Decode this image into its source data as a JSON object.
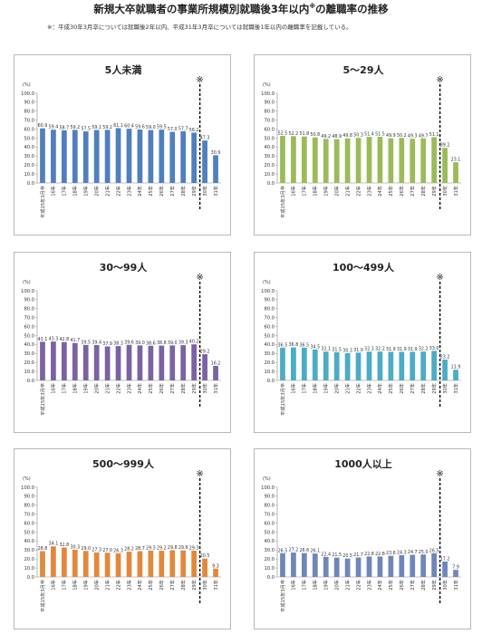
{
  "page": {
    "title": "新規大卒就職者の事業所規模別就職後3年以内",
    "title_mark": "※",
    "title_suffix": "の離職率の推移",
    "note": "※：平成30年3月卒については就職後2年以内、平成31年3月卒については就職後1年以内の離職率を記載している。"
  },
  "chart_data": [
    {
      "type": "bar",
      "title": "5人未満",
      "color": "#4f7fbf",
      "unit": "(%)",
      "marker": "※",
      "ylim": [
        0,
        100
      ],
      "yticks": [
        "0.0",
        "10.0",
        "20.0",
        "30.0",
        "40.0",
        "50.0",
        "60.0",
        "70.0",
        "80.0",
        "90.0",
        "100.0"
      ],
      "categories": [
        "平成15年3月卒",
        "16年",
        "17年",
        "18年",
        "19年",
        "20年",
        "21年",
        "22年",
        "23年",
        "24年",
        "25年",
        "26年",
        "27年",
        "28年",
        "29年",
        "30年",
        "31年"
      ],
      "values": [
        60.9,
        59.4,
        58.7,
        59.2,
        57.5,
        59.1,
        59.2,
        61.1,
        60.4,
        59.6,
        59.0,
        59.5,
        57.0,
        57.7,
        56.1,
        47.3,
        30.9
      ],
      "value_labels": [
        "60.9",
        "59.4",
        "58.7",
        "59.2",
        "57.5",
        "59.1",
        "59.2",
        "61.1",
        "60.4",
        "59.6",
        "59.0",
        "59.5",
        "57.0",
        "57.7",
        "56.1",
        "47.3",
        "30.9"
      ]
    },
    {
      "type": "bar",
      "title": "5～29人",
      "color": "#9bbb59",
      "unit": "(%)",
      "marker": "※",
      "ylim": [
        0,
        100
      ],
      "yticks": [
        "0.0",
        "10.0",
        "20.0",
        "30.0",
        "40.0",
        "50.0",
        "60.0",
        "70.0",
        "80.0",
        "90.0",
        "100.0"
      ],
      "categories": [
        "平成15年3月卒",
        "16年",
        "17年",
        "18年",
        "19年",
        "20年",
        "21年",
        "22年",
        "23年",
        "24年",
        "25年",
        "26年",
        "27年",
        "28年",
        "29年",
        "30年",
        "31年"
      ],
      "values": [
        52.5,
        52.2,
        51.8,
        50.8,
        49.2,
        48.9,
        49.8,
        50.3,
        51.4,
        51.5,
        49.9,
        50.2,
        49.3,
        49.7,
        51.1,
        39.2,
        23.1
      ],
      "value_labels": [
        "52.5",
        "52.2",
        "51.8",
        "50.8",
        "49.2",
        "48.9",
        "49.8",
        "50.3",
        "51.4",
        "51.5",
        "49.9",
        "50.2",
        "49.3",
        "49.7",
        "51.1",
        "39.2",
        "23.1"
      ]
    },
    {
      "type": "bar",
      "title": "30～99人",
      "color": "#7b62a3",
      "unit": "(%)",
      "marker": "※",
      "ylim": [
        0,
        100
      ],
      "yticks": [
        "0.0",
        "10.0",
        "20.0",
        "30.0",
        "40.0",
        "50.0",
        "60.0",
        "70.0",
        "80.0",
        "90.0",
        "100.0"
      ],
      "categories": [
        "平成15年3月卒",
        "16年",
        "17年",
        "18年",
        "19年",
        "20年",
        "21年",
        "22年",
        "23年",
        "24年",
        "25年",
        "26年",
        "27年",
        "28年",
        "29年",
        "30年",
        "31年"
      ],
      "values": [
        43.1,
        43.3,
        42.8,
        41.7,
        39.5,
        39.4,
        37.9,
        38.3,
        39.6,
        39.0,
        38.6,
        38.8,
        39.0,
        39.3,
        40.2,
        29.2,
        16.2
      ],
      "value_labels": [
        "43.1",
        "43.3",
        "42.8",
        "41.7",
        "39.5",
        "39.4",
        "37.9",
        "38.3",
        "39.6",
        "39.0",
        "38.6",
        "38.8",
        "39.0",
        "39.3",
        "40.2",
        "29.2",
        "16.2"
      ]
    },
    {
      "type": "bar",
      "title": "100～499人",
      "color": "#4bacc6",
      "unit": "(%)",
      "marker": "※",
      "ylim": [
        0,
        100
      ],
      "yticks": [
        "0.0",
        "10.0",
        "20.0",
        "30.0",
        "40.0",
        "50.0",
        "60.0",
        "70.0",
        "80.0",
        "90.0",
        "100.0"
      ],
      "categories": [
        "平成15年3月卒",
        "16年",
        "17年",
        "18年",
        "19年",
        "20年",
        "21年",
        "22年",
        "23年",
        "24年",
        "25年",
        "26年",
        "27年",
        "28年",
        "29年",
        "30年",
        "31年"
      ],
      "values": [
        36.5,
        36.8,
        36.5,
        34.5,
        32.1,
        31.5,
        30.3,
        31.0,
        32.1,
        32.2,
        31.9,
        31.9,
        31.9,
        32.2,
        33.0,
        23.2,
        11.9
      ],
      "value_labels": [
        "36.5",
        "36.8",
        "36.5",
        "34.5",
        "32.1",
        "31.5",
        "30.3",
        "31.0",
        "32.1",
        "32.2",
        "31.9",
        "31.9",
        "31.9",
        "32.2",
        "33.0",
        "23.2",
        "11.9"
      ]
    },
    {
      "type": "bar",
      "title": "500～999人",
      "color": "#e2883d",
      "unit": "(%)",
      "marker": "※",
      "ylim": [
        0,
        100
      ],
      "yticks": [
        "0.0",
        "10.0",
        "20.0",
        "30.0",
        "40.0",
        "50.0",
        "60.0",
        "70.0",
        "80.0",
        "90.0",
        "100.0"
      ],
      "categories": [
        "平成15年3月卒",
        "16年",
        "17年",
        "18年",
        "19年",
        "20年",
        "21年",
        "22年",
        "23年",
        "24年",
        "25年",
        "26年",
        "27年",
        "28年",
        "29年",
        "30年",
        "31年"
      ],
      "values": [
        28.8,
        34.1,
        32.8,
        30.3,
        29.0,
        27.3,
        27.0,
        26.3,
        28.2,
        28.7,
        29.3,
        29.2,
        29.8,
        29.6,
        29.3,
        20.5,
        9.3
      ],
      "value_labels": [
        "28.8",
        "34.1",
        "32.8",
        "30.3",
        "29.0",
        "27.3",
        "27.0",
        "26.3",
        "28.2",
        "28.7",
        "29.3",
        "29.2",
        "29.8",
        "29.6",
        "29.3",
        "20.5",
        "9.3"
      ]
    },
    {
      "type": "bar",
      "title": "1000人以上",
      "color": "#6f86b8",
      "unit": "(%)",
      "marker": "※",
      "ylim": [
        0,
        100
      ],
      "yticks": [
        "0.0",
        "10.0",
        "20.0",
        "30.0",
        "40.0",
        "50.0",
        "60.0",
        "70.0",
        "80.0",
        "90.0",
        "100.0"
      ],
      "categories": [
        "平成15年3月卒",
        "16年",
        "17年",
        "18年",
        "19年",
        "20年",
        "21年",
        "22年",
        "23年",
        "24年",
        "25年",
        "26年",
        "27年",
        "28年",
        "29年",
        "30年",
        "31年"
      ],
      "values": [
        26.5,
        27.2,
        26.6,
        26.1,
        22.4,
        21.5,
        20.5,
        21.7,
        22.8,
        22.8,
        23.6,
        24.3,
        24.7,
        25.0,
        26.5,
        17.2,
        7.9
      ],
      "value_labels": [
        "26.5",
        "27.2",
        "26.6",
        "26.1",
        "22.4",
        "21.5",
        "20.5",
        "21.7",
        "22.8",
        "22.8",
        "23.6",
        "24.3",
        "24.7",
        "25.0",
        "26.5",
        "17.2",
        "7.9"
      ]
    }
  ]
}
